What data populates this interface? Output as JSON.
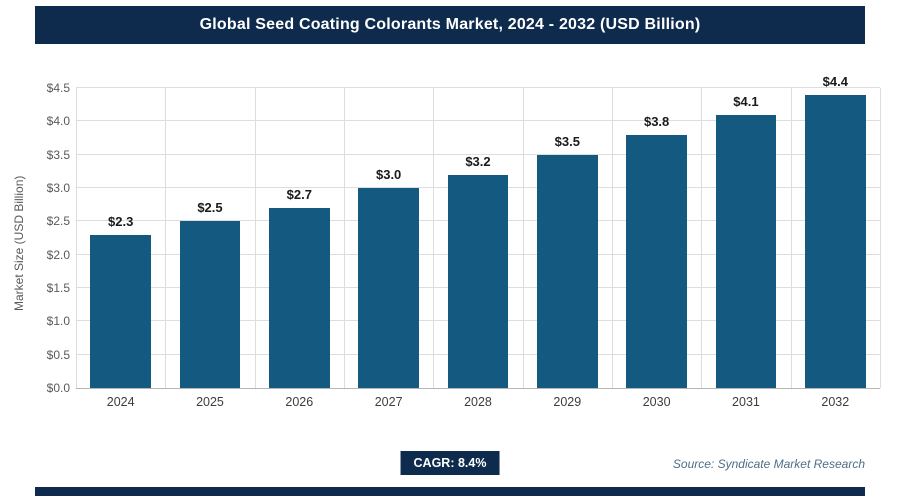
{
  "header": {
    "title": "Global Seed Coating Colorants Market, 2024 - 2032 (USD Billion)"
  },
  "footer": {
    "cagr_label": "CAGR: 8.4%",
    "source": "Source: Syndicate Market Research"
  },
  "colors": {
    "header": "#0e2b4d",
    "bar": "#14597f",
    "grid": "#dddddd",
    "axis": "#b5b5b5",
    "source": "#4f6e86"
  },
  "chart_data": {
    "type": "bar",
    "title": "Global Seed Coating Colorants Market, 2024 - 2032 (USD Billion)",
    "categories": [
      "2024",
      "2025",
      "2026",
      "2027",
      "2028",
      "2029",
      "2030",
      "2031",
      "2032"
    ],
    "values": [
      2.3,
      2.5,
      2.7,
      3.0,
      3.2,
      3.5,
      3.8,
      4.1,
      4.4
    ],
    "labels": [
      "$2.3",
      "$2.5",
      "$2.7",
      "$3.0",
      "$3.2",
      "$3.5",
      "$3.8",
      "$4.1",
      "$4.4"
    ],
    "xlabel": "",
    "ylabel": "Market Size (USD Billion)",
    "ylim": [
      0,
      4.5
    ],
    "ytick_step": 0.5,
    "ytick_prefix": "$",
    "grid": true,
    "legend": false
  }
}
